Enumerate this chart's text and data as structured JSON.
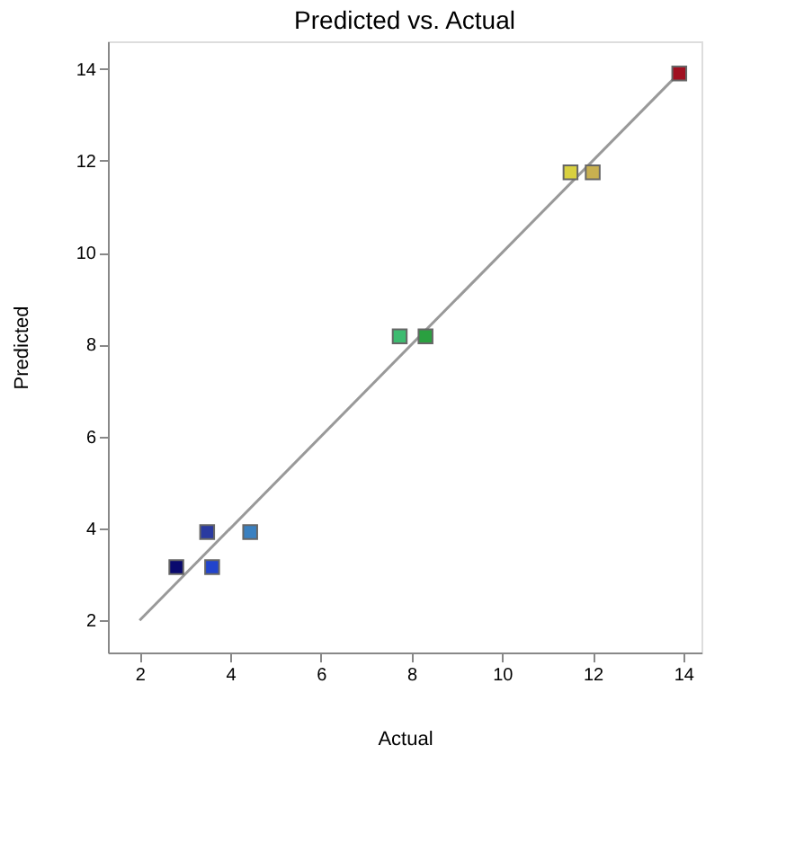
{
  "chart_data": {
    "type": "scatter",
    "title": "Predicted vs. Actual",
    "xlabel": "Actual",
    "ylabel": "Predicted",
    "xlim": [
      1.3,
      14.4
    ],
    "ylim": [
      1.3,
      14.6
    ],
    "xticks": [
      2,
      4,
      6,
      8,
      10,
      12,
      14
    ],
    "yticks": [
      2,
      4,
      6,
      8,
      10,
      12,
      14
    ],
    "grid": false,
    "legend": false,
    "series": [
      {
        "type": "scatter",
        "marker": "square",
        "x": [
          2.81,
          3.49,
          3.6,
          4.44,
          7.74,
          8.31,
          11.51,
          12.0,
          13.91
        ],
        "values": [
          3.16,
          3.92,
          3.16,
          3.92,
          8.18,
          8.18,
          11.75,
          11.75,
          13.9
        ],
        "colors": [
          "#0a0a6e",
          "#2a3aa0",
          "#2244cc",
          "#3a80c0",
          "#3dbb70",
          "#2aa040",
          "#d8d040",
          "#c8b050",
          "#a01020"
        ]
      },
      {
        "type": "line",
        "x": [
          2,
          14
        ],
        "values": [
          2,
          14
        ],
        "color": "#999999",
        "line_style": "solid",
        "marker": "none"
      }
    ]
  }
}
